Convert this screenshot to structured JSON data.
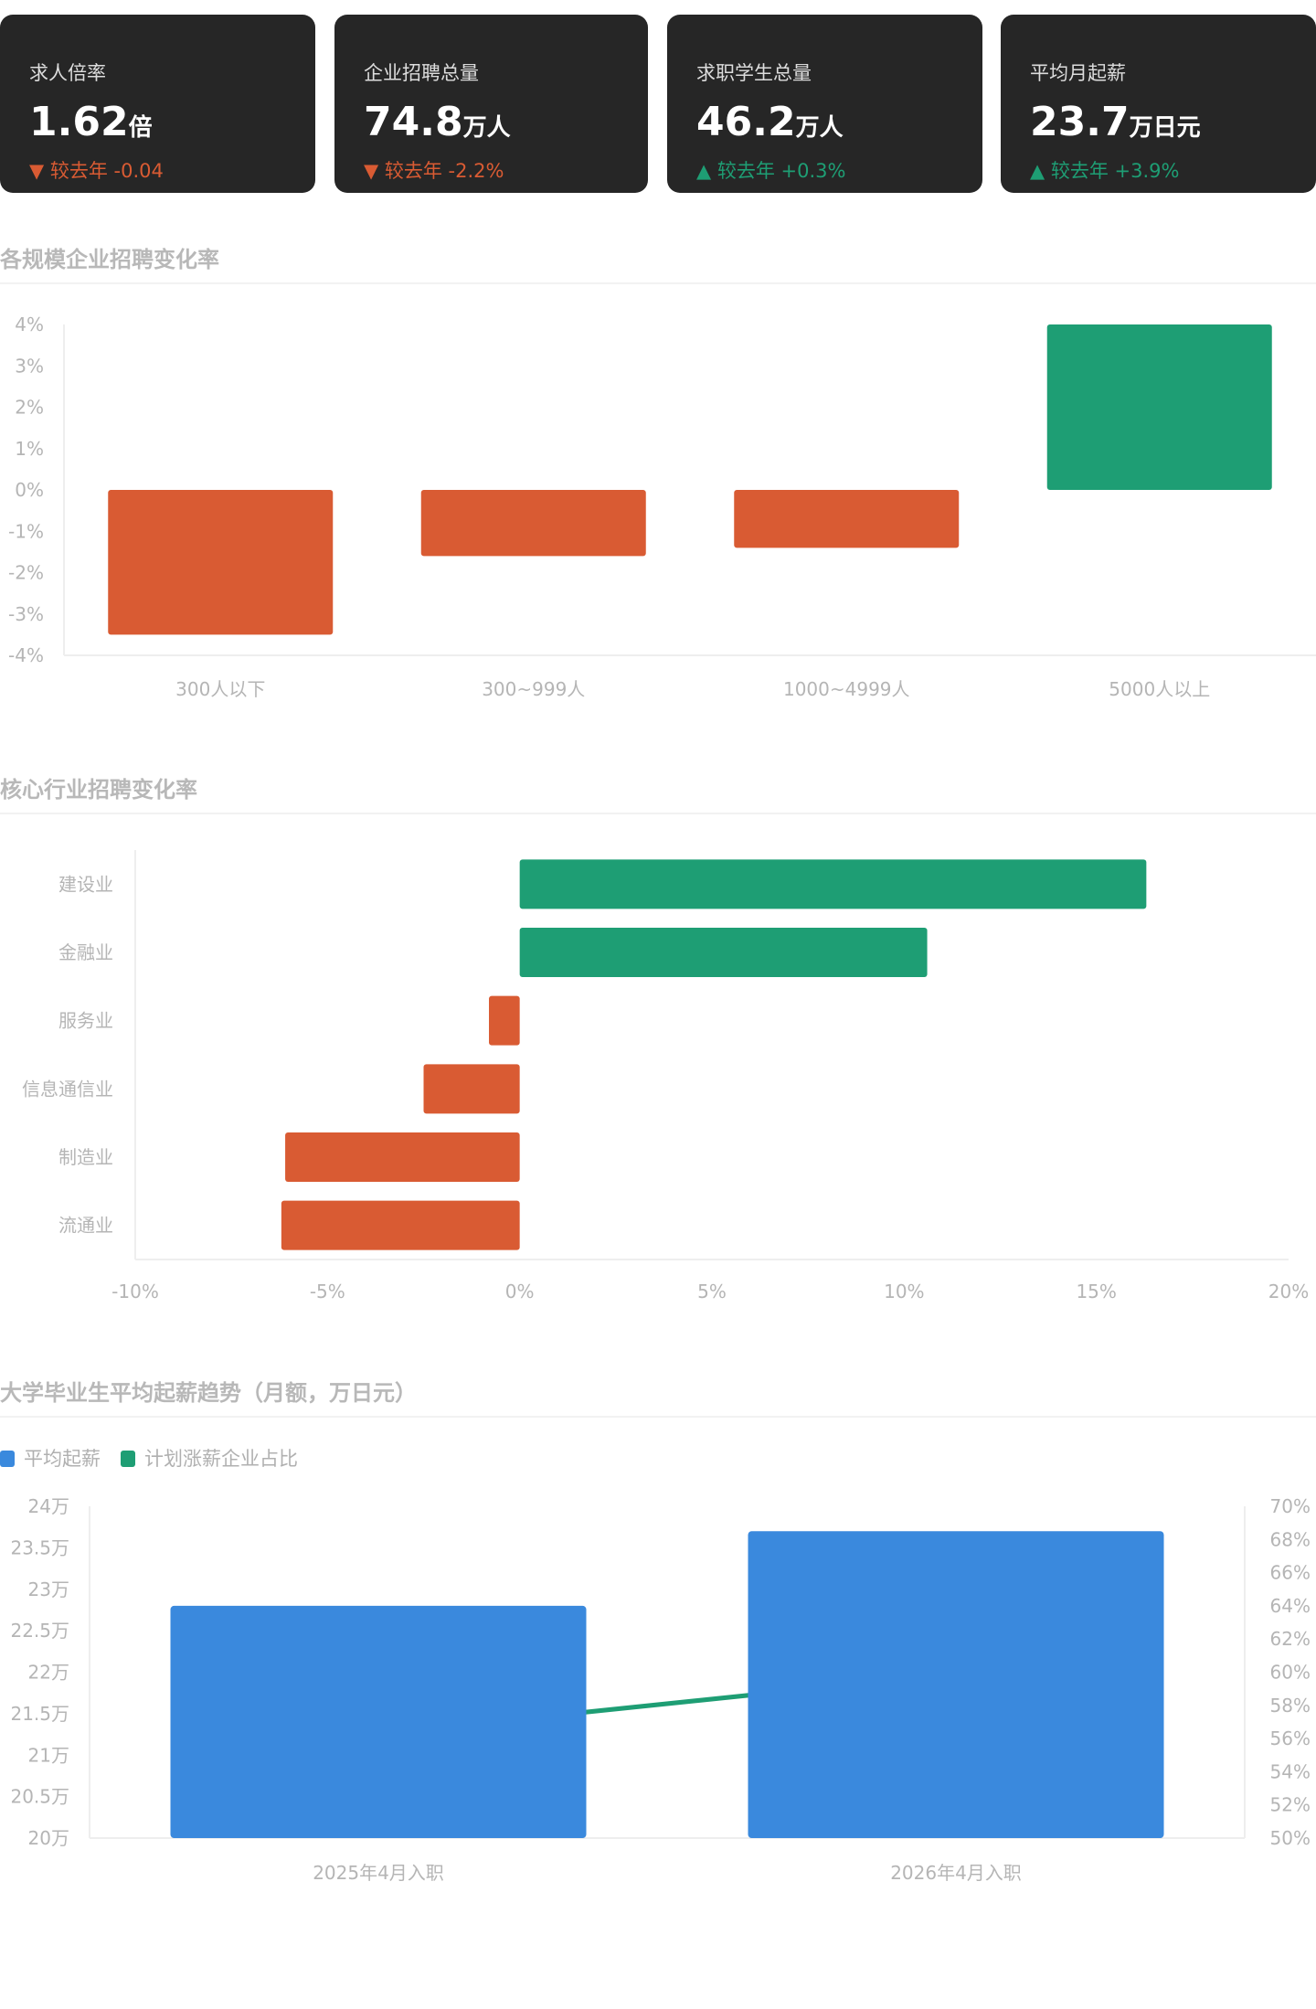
{
  "kpis": [
    {
      "title": "求人倍率",
      "value": "1.62",
      "unit": "倍",
      "direction": "down",
      "change": "较去年 -0.04"
    },
    {
      "title": "企业招聘总量",
      "value": "74.8",
      "unit": "万人",
      "direction": "down",
      "change": "较去年 -2.2%"
    },
    {
      "title": "求职学生总量",
      "value": "46.2",
      "unit": "万人",
      "direction": "up",
      "change": "较去年 +0.3%"
    },
    {
      "title": "平均月起薪",
      "value": "23.7",
      "unit": "万日元",
      "direction": "up",
      "change": "较去年 +3.9%"
    }
  ],
  "colors": {
    "negative": "#d95b33",
    "positive": "#1e9e74",
    "blue": "#3a89dd",
    "card": "#262626"
  },
  "chart_data": [
    {
      "type": "bar",
      "title": "各规模企业招聘变化率",
      "categories": [
        "300人以下",
        "300~999人",
        "1000~4999人",
        "5000人以上"
      ],
      "values": [
        -3.5,
        -1.6,
        -1.4,
        4.0
      ],
      "ylim": [
        -4,
        4
      ],
      "yticks": [
        "4%",
        "3%",
        "2%",
        "1%",
        "0%",
        "-1%",
        "-2%",
        "-3%",
        "-4%"
      ],
      "ytick_values": [
        4,
        3,
        2,
        1,
        0,
        -1,
        -2,
        -3,
        -4
      ]
    },
    {
      "type": "bar",
      "orientation": "horizontal",
      "title": "核心行业招聘变化率",
      "categories": [
        "建设业",
        "金融业",
        "服务业",
        "信息通信业",
        "制造业",
        "流通业"
      ],
      "values": [
        16.3,
        10.6,
        -0.8,
        -2.5,
        -6.1,
        -6.2
      ],
      "xlim": [
        -10,
        20
      ],
      "xticks": [
        "-10%",
        "-5%",
        "0%",
        "5%",
        "10%",
        "15%",
        "20%"
      ],
      "xtick_values": [
        -10,
        -5,
        0,
        5,
        10,
        15,
        20
      ]
    },
    {
      "type": "bar",
      "title": "大学毕业生平均起薪趋势（月额，万日元）",
      "categories": [
        "2025年4月入职",
        "2026年4月入职"
      ],
      "series": [
        {
          "name": "平均起薪",
          "kind": "bar",
          "axis": "left",
          "values": [
            22.8,
            23.7
          ]
        },
        {
          "name": "计划涨薪企业占比",
          "kind": "line",
          "axis": "right",
          "values": [
            56.3,
            59.9
          ]
        }
      ],
      "ylim": [
        20,
        24
      ],
      "yticks": [
        "24万",
        "23.5万",
        "23万",
        "22.5万",
        "22万",
        "21.5万",
        "21万",
        "20.5万",
        "20万"
      ],
      "ytick_values": [
        24,
        23.5,
        23,
        22.5,
        22,
        21.5,
        21,
        20.5,
        20
      ],
      "y2lim": [
        50,
        70
      ],
      "y2ticks": [
        "70%",
        "68%",
        "66%",
        "64%",
        "62%",
        "60%",
        "58%",
        "56%",
        "54%",
        "52%",
        "50%"
      ]
    }
  ]
}
